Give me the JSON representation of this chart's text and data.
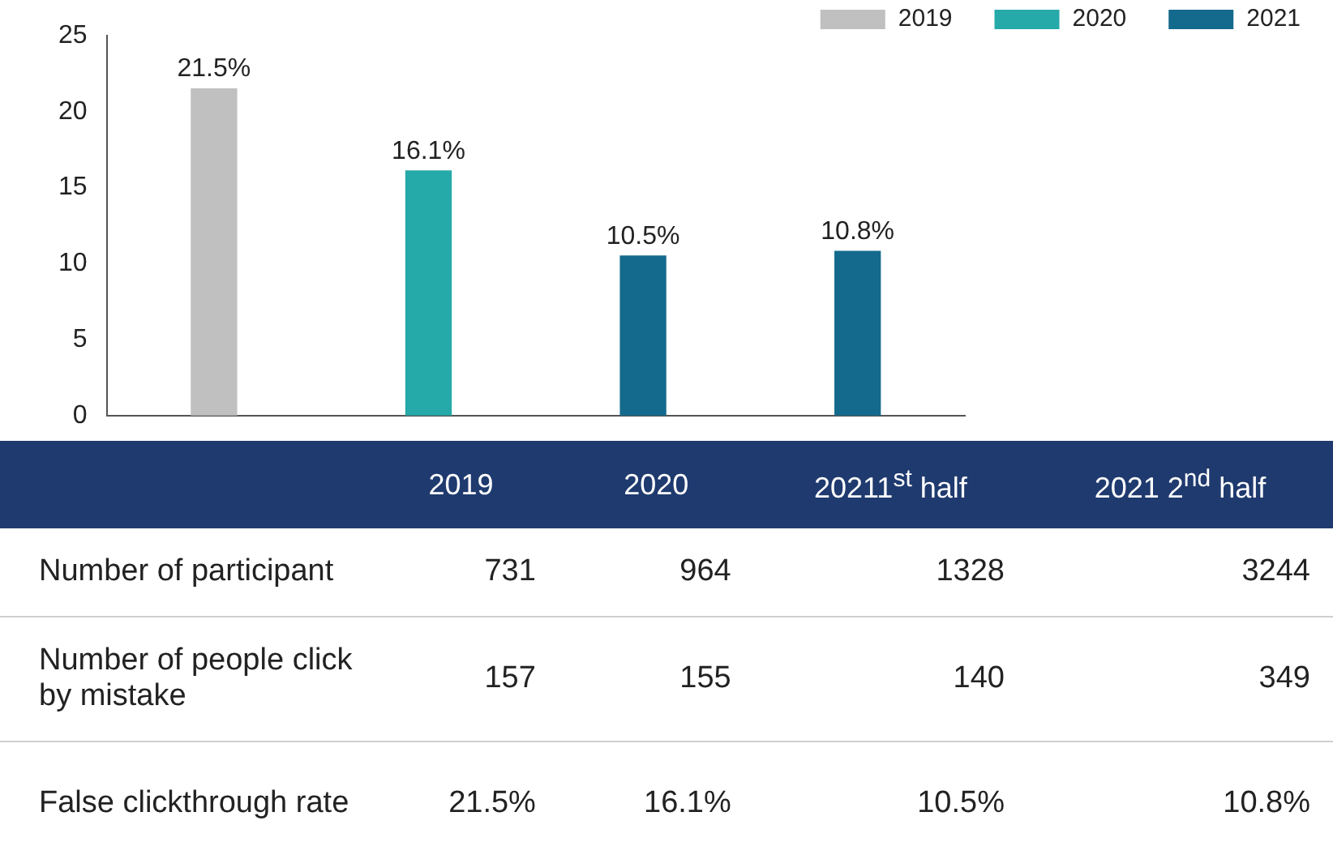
{
  "chart_data": [
    {
      "type": "bar",
      "categories": [
        null,
        null,
        null,
        null
      ],
      "series": [
        {
          "name": "2019",
          "color": "#c0c0c0",
          "values": [
            21.5,
            null,
            null,
            null
          ],
          "value_labels": [
            "21.5%",
            null,
            null,
            null
          ]
        },
        {
          "name": "2020",
          "color": "#26a9a9",
          "values": [
            null,
            16.1,
            null,
            null
          ],
          "value_labels": [
            null,
            "16.1%",
            null,
            null
          ]
        },
        {
          "name": "2021",
          "color": "#146a8c",
          "values": [
            null,
            null,
            10.5,
            10.8
          ],
          "value_labels": [
            null,
            null,
            "10.5%",
            "10.8%"
          ]
        }
      ],
      "ylim": [
        0,
        25
      ],
      "yticks": [
        0,
        5,
        10,
        15,
        20,
        25
      ],
      "grid": false,
      "legend": "top right"
    },
    {
      "type": "other",
      "data_labels": true,
      "categories": [
        "2019",
        "2020",
        "20211$^{st}$ half",
        "2021 2$^{nd}$ half"
      ],
      "series": [
        {
          "name": "Number of participant",
          "values": [
            731,
            964,
            1328,
            3244
          ]
        },
        {
          "name": "Number of people click by mistake",
          "values": [
            157,
            155,
            140,
            349
          ]
        },
        {
          "name": "False clickthrough rate",
          "values": [
            21.5,
            16.1,
            10.5,
            10.8
          ],
          "value_labels": [
            "21.5%",
            "16.1%",
            "10.5%",
            "10.8%"
          ]
        }
      ]
    }
  ]
}
